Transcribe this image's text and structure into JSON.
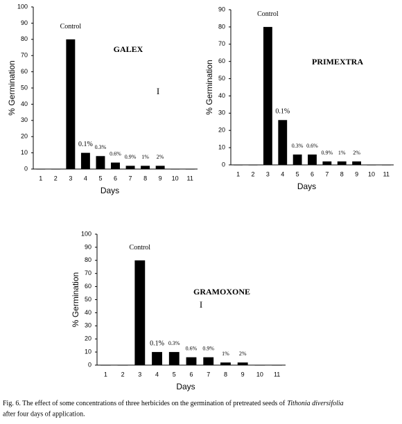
{
  "chart_data": [
    {
      "type": "bar",
      "title": "GALEX",
      "marker": "I",
      "ylabel": "% Germination",
      "xlabel": "Days",
      "categories": [
        "1",
        "2",
        "3",
        "4",
        "5",
        "6",
        "7",
        "8",
        "9",
        "10",
        "11"
      ],
      "values": [
        0,
        0,
        80,
        10,
        8,
        4,
        2,
        2,
        2,
        0,
        0
      ],
      "color": "#000000",
      "ylim": [
        0,
        100
      ],
      "yticks": [
        0,
        10,
        20,
        30,
        40,
        50,
        60,
        70,
        80,
        90,
        100
      ],
      "annotations": [
        {
          "text": "Control",
          "x": "3"
        },
        {
          "text": "0.1%",
          "x": "4"
        },
        {
          "text": "0.3%",
          "x": "5"
        },
        {
          "text": "0.6%",
          "x": "6"
        },
        {
          "text": "0.9%",
          "x": "7"
        },
        {
          "text": "1%",
          "x": "8"
        },
        {
          "text": "2%",
          "x": "9"
        }
      ]
    },
    {
      "type": "bar",
      "title": "PRIMEXTRA",
      "ylabel": "% Germination",
      "xlabel": "Days",
      "categories": [
        "1",
        "2",
        "3",
        "4",
        "5",
        "6",
        "7",
        "8",
        "9",
        "10",
        "11"
      ],
      "values": [
        0,
        0,
        80,
        26,
        6,
        6,
        2,
        2,
        2,
        0,
        0
      ],
      "color": "#000000",
      "ylim": [
        0,
        90
      ],
      "yticks": [
        0,
        10,
        20,
        30,
        40,
        50,
        60,
        70,
        80,
        90
      ],
      "annotations": [
        {
          "text": "Control",
          "x": "3"
        },
        {
          "text": "0.1%",
          "x": "4"
        },
        {
          "text": "0.3%",
          "x": "5"
        },
        {
          "text": "0.6%",
          "x": "6"
        },
        {
          "text": "0.9%",
          "x": "7"
        },
        {
          "text": "1%",
          "x": "8"
        },
        {
          "text": "2%",
          "x": "9"
        }
      ]
    },
    {
      "type": "bar",
      "title": "GRAMOXONE",
      "marker": "I",
      "ylabel": "% Germination",
      "xlabel": "Days",
      "categories": [
        "1",
        "2",
        "3",
        "4",
        "5",
        "6",
        "7",
        "8",
        "9",
        "10",
        "11"
      ],
      "values": [
        0,
        0,
        80,
        10,
        10,
        6,
        6,
        2,
        2,
        0,
        0
      ],
      "color": "#000000",
      "ylim": [
        0,
        100
      ],
      "yticks": [
        0,
        10,
        20,
        30,
        40,
        50,
        60,
        70,
        80,
        90,
        100
      ],
      "annotations": [
        {
          "text": "Control",
          "x": "3"
        },
        {
          "text": "0.1%",
          "x": "4"
        },
        {
          "text": "0.3%",
          "x": "5"
        },
        {
          "text": "0.6%",
          "x": "6"
        },
        {
          "text": "0.9%",
          "x": "7"
        },
        {
          "text": "1%",
          "x": "8"
        },
        {
          "text": "2%",
          "x": "9"
        }
      ]
    }
  ],
  "caption": [
    "Fig. 6. The effect of some concentrations of three herbicides on the germination of pretreated seeds of",
    "Tithonia diversifolia",
    "after four days of application."
  ]
}
